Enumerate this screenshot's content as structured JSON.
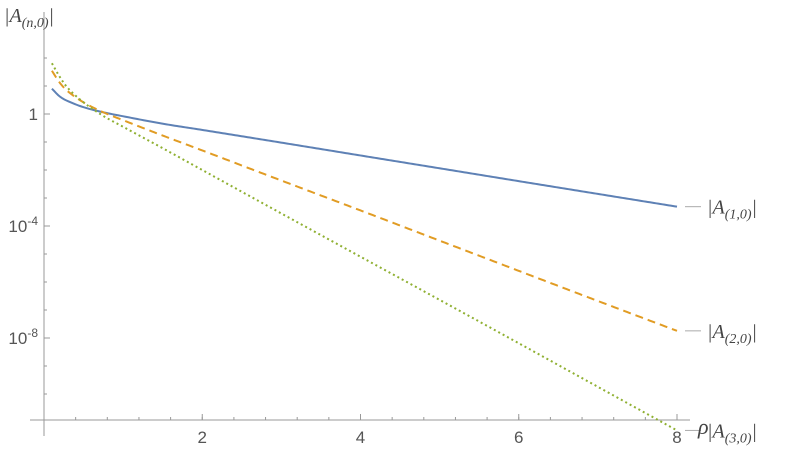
{
  "chart_data": {
    "type": "line",
    "xlabel": "ρ",
    "ylabel": "|A(n,0)|",
    "xlim": [
      0,
      8.1
    ],
    "y_scale": "log",
    "ylim": [
      1e-11,
      100.0
    ],
    "grid": false,
    "legend": "right-end-labels",
    "x_ticks": [
      {
        "value": 2,
        "label": "2"
      },
      {
        "value": 4,
        "label": "4"
      },
      {
        "value": 6,
        "label": "6"
      },
      {
        "value": 8,
        "label": "8"
      }
    ],
    "y_ticks": [
      {
        "value": 1,
        "label": "1"
      },
      {
        "value": 0.0001,
        "label": "10-4"
      },
      {
        "value": 1e-08,
        "label": "10-8"
      }
    ],
    "series": [
      {
        "name": "|A(1,0)|",
        "color": "#5e81b5",
        "dash": "solid",
        "x": [
          0.1,
          0.2,
          0.3,
          0.5,
          0.75,
          1,
          1.5,
          2,
          3,
          4,
          5,
          6,
          7,
          8
        ],
        "y": [
          8.0,
          4.2,
          2.9,
          1.75,
          1.15,
          0.83,
          0.45,
          0.27,
          0.095,
          0.033,
          0.0115,
          0.004,
          0.0014,
          0.00049
        ]
      },
      {
        "name": "|A(2,0)|",
        "color": "#e19c24",
        "dash": "dashed",
        "x": [
          0.1,
          0.2,
          0.3,
          0.5,
          0.75,
          1,
          1.5,
          2,
          3,
          4,
          5,
          6,
          7,
          8
        ],
        "y": [
          35,
          13,
          6.5,
          2.6,
          1.15,
          0.6,
          0.17,
          0.05,
          0.0042,
          0.00036,
          3e-05,
          2.5e-06,
          2.1e-07,
          1.8e-08
        ]
      },
      {
        "name": "|A(3,0)|",
        "color": "#8fb032",
        "dash": "dotted",
        "x": [
          0.1,
          0.2,
          0.3,
          0.5,
          0.75,
          1,
          1.5,
          2,
          3,
          4,
          5,
          6,
          7,
          8
        ],
        "y": [
          65,
          21,
          8.5,
          2.6,
          0.85,
          0.35,
          0.06,
          0.01,
          0.00028,
          8e-06,
          2.3e-07,
          6.5e-09,
          1.8e-10,
          5e-12
        ]
      }
    ]
  }
}
